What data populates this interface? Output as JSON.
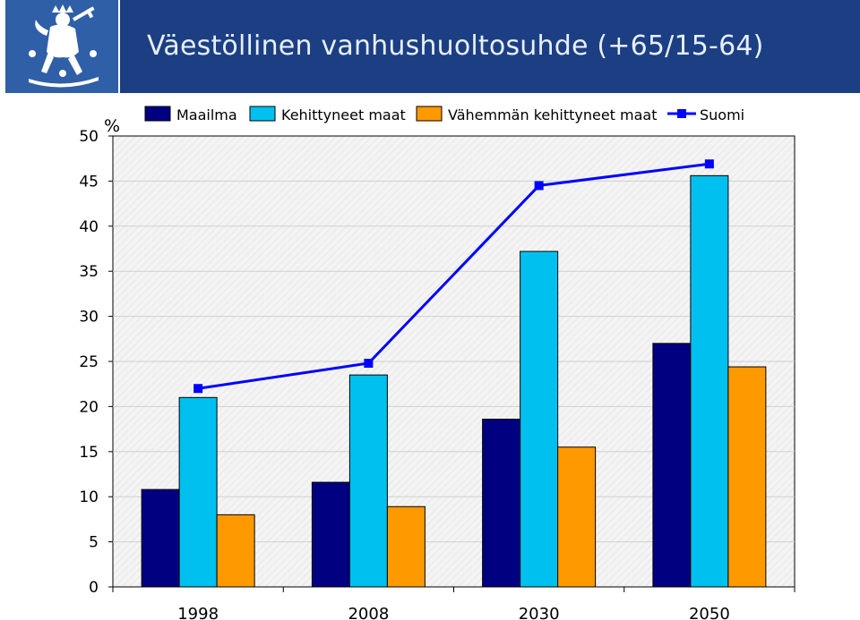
{
  "page": {
    "title": "Väestöllinen vanhushuoltosuhde (+65/15-64)"
  },
  "logo": {
    "icon": "lion-coat-of-arms-icon"
  },
  "colors": {
    "title_band": "#1b3f82",
    "logo_band": "#2f5fa7",
    "maailma": "#000080",
    "kehittyneet": "#00c0f0",
    "vahemman": "#ff9900",
    "suomi": "#0000ff",
    "plot_bg": "#f3f3f3",
    "grid": "#d0d0d0"
  },
  "chart_data": {
    "type": "bar",
    "unit_label": "%",
    "categories": [
      "1998",
      "2008",
      "2030",
      "2050"
    ],
    "ylim": [
      0,
      50
    ],
    "yticks": [
      0,
      5,
      10,
      15,
      20,
      25,
      30,
      35,
      40,
      45,
      50
    ],
    "grid": true,
    "legend_position": "top",
    "series": [
      {
        "name": "Maailma",
        "type": "bar",
        "values": [
          10.8,
          11.6,
          18.6,
          27.0
        ]
      },
      {
        "name": "Kehittyneet maat",
        "type": "bar",
        "values": [
          21.0,
          23.5,
          37.2,
          45.6
        ]
      },
      {
        "name": "Vähemmän kehittyneet maat",
        "type": "bar",
        "values": [
          8.0,
          8.9,
          15.5,
          24.4
        ]
      },
      {
        "name": "Suomi",
        "type": "line",
        "values": [
          22.0,
          24.8,
          44.5,
          46.9
        ]
      }
    ]
  }
}
